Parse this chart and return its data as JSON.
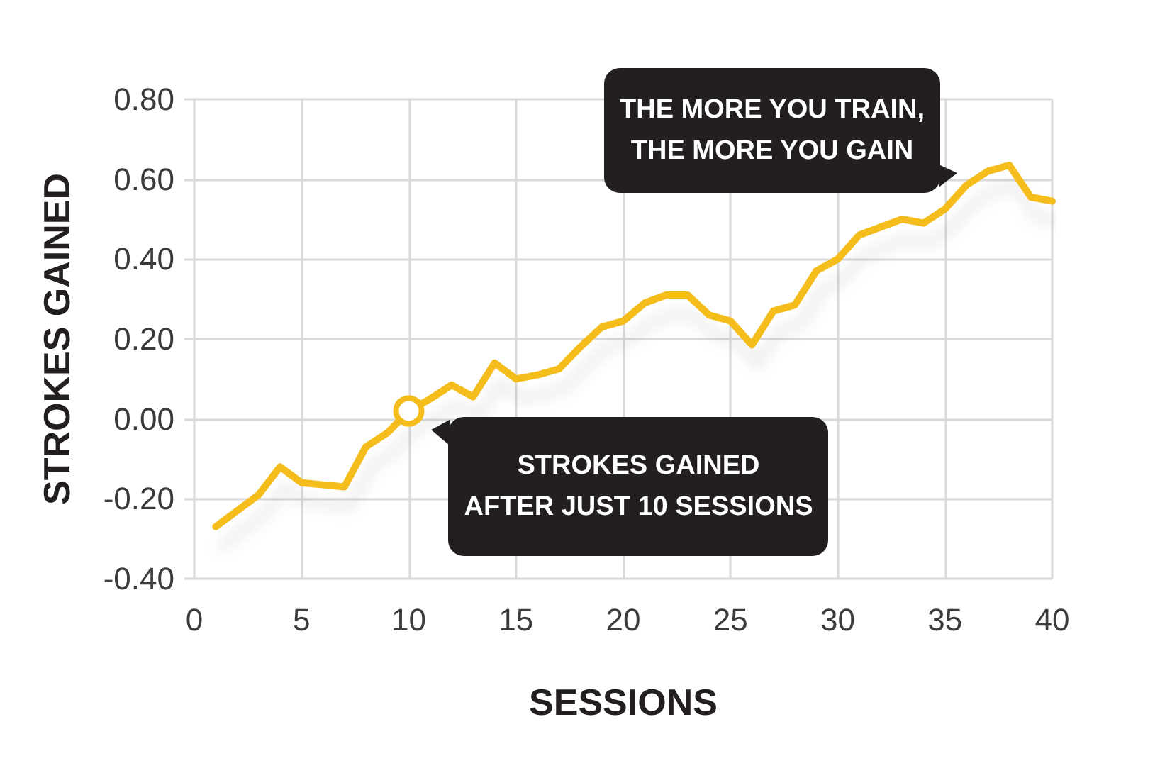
{
  "chart_data": {
    "type": "line",
    "xlabel": "SESSIONS",
    "ylabel": "STROKES GAINED",
    "x": [
      1,
      2,
      3,
      4,
      5,
      6,
      7,
      8,
      9,
      10,
      11,
      12,
      13,
      14,
      15,
      16,
      17,
      18,
      19,
      20,
      21,
      22,
      23,
      24,
      25,
      26,
      27,
      28,
      29,
      30,
      31,
      32,
      33,
      34,
      35,
      36,
      37,
      38,
      39,
      40
    ],
    "values": [
      -0.27,
      -0.23,
      -0.19,
      -0.12,
      -0.16,
      -0.165,
      -0.17,
      -0.07,
      -0.035,
      0.02,
      0.05,
      0.085,
      0.055,
      0.14,
      0.1,
      0.11,
      0.125,
      0.18,
      0.23,
      0.245,
      0.29,
      0.31,
      0.31,
      0.26,
      0.245,
      0.185,
      0.27,
      0.285,
      0.37,
      0.4,
      0.46,
      0.48,
      0.5,
      0.49,
      0.525,
      0.585,
      0.62,
      0.635,
      0.555,
      0.545
    ],
    "color": "#f4bd1c",
    "marker": "none",
    "grid": true,
    "xlim": [
      0,
      40
    ],
    "xticks": [
      0,
      5,
      10,
      15,
      20,
      25,
      30,
      35,
      40
    ],
    "ylim": [
      -0.4,
      0.8
    ],
    "yticks": [
      {
        "value": -0.4,
        "label": "-0.40"
      },
      {
        "value": -0.2,
        "label": "-0.20"
      },
      {
        "value": 0,
        "label": "0.00"
      },
      {
        "value": 0.2,
        "label": "0.20"
      },
      {
        "value": 0.4,
        "label": "0.40"
      },
      {
        "value": 0.6,
        "label": "0.60"
      },
      {
        "value": 0.8,
        "label": "0.80"
      }
    ],
    "annotations": [
      {
        "text": "STROKES GAINED\nAFTER JUST 10 SESSIONS",
        "x": 10,
        "y": 0.02
      },
      "THE MORE YOU TRAIN,\nTHE MORE YOU GAIN"
    ]
  }
}
